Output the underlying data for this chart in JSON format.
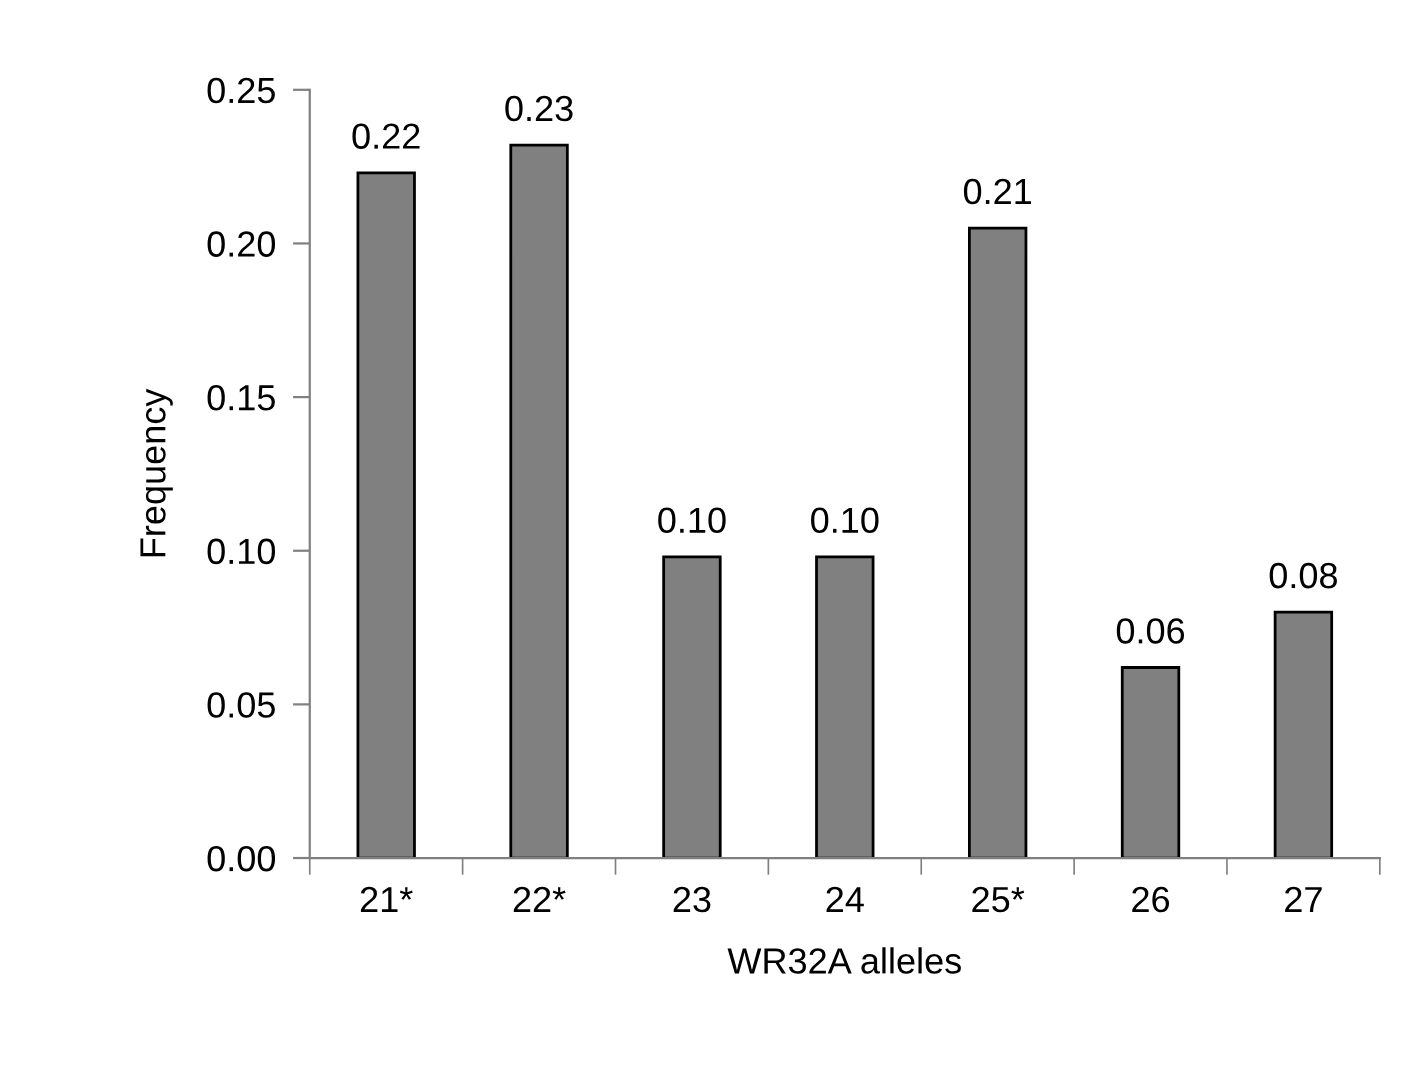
{
  "chart_data": {
    "type": "bar",
    "xlabel": "WR32A alleles",
    "ylabel": "Frequency",
    "categories": [
      "21*",
      "22*",
      "23",
      "24",
      "25*",
      "26",
      "27"
    ],
    "values": [
      0.223,
      0.232,
      0.098,
      0.098,
      0.205,
      0.062,
      0.08
    ],
    "value_labels": [
      "0.22",
      "0.23",
      "0.10",
      "0.10",
      "0.21",
      "0.06",
      "0.08"
    ],
    "color": "#808080",
    "ylim": [
      0,
      0.25
    ],
    "yticks": [
      {
        "value": 0,
        "label": "0.00"
      },
      {
        "value": 0.05,
        "label": "0.05"
      },
      {
        "value": 0.1,
        "label": "0.10"
      },
      {
        "value": 0.15,
        "label": "0.15"
      },
      {
        "value": 0.2,
        "label": "0.20"
      },
      {
        "value": 0.25,
        "label": "0.25"
      }
    ],
    "grid": false,
    "legend": false
  }
}
